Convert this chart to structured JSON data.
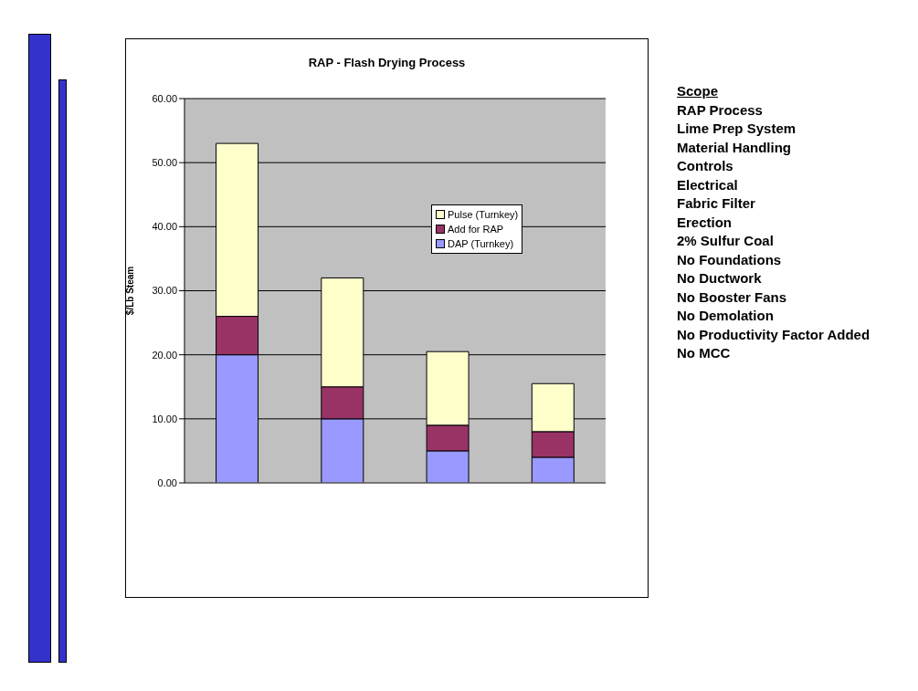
{
  "chart_data": {
    "type": "bar",
    "title": "RAP - Flash Drying Process",
    "ylabel": "$/Lb Steam",
    "categories": [
      null,
      null,
      null,
      null
    ],
    "stacked": true,
    "series": [
      {
        "name": "DAP (Turnkey)",
        "color": "#9999ff",
        "values": [
          20,
          10,
          5,
          4
        ]
      },
      {
        "name": "Add for RAP",
        "color": "#993366",
        "values": [
          6,
          5,
          4,
          4
        ]
      },
      {
        "name": "Pulse (Turnkey)",
        "color": "#ffffcc",
        "values": [
          27,
          17,
          11.5,
          7.5
        ]
      }
    ],
    "ylim": [
      0,
      60
    ],
    "yticks": [
      {
        "value": 0,
        "label": "0.00"
      },
      {
        "value": 10,
        "label": "10.00"
      },
      {
        "value": 20,
        "label": "20.00"
      },
      {
        "value": 30,
        "label": "30.00"
      },
      {
        "value": 40,
        "label": "40.00"
      },
      {
        "value": 50,
        "label": "50.00"
      },
      {
        "value": 60,
        "label": "60.00"
      }
    ],
    "grid": "y",
    "legend": "right",
    "annotations": [
      "Scope",
      "RAP Process",
      "Lime Prep System",
      "Material Handling",
      "Controls",
      "Electrical",
      "Fabric Filter",
      "Erection",
      "2% Sulfur Coal",
      "No Foundations",
      "No Ductwork",
      "No Booster Fans",
      "No Demolation",
      "No Productivity Factor Added",
      "No MCC"
    ]
  }
}
